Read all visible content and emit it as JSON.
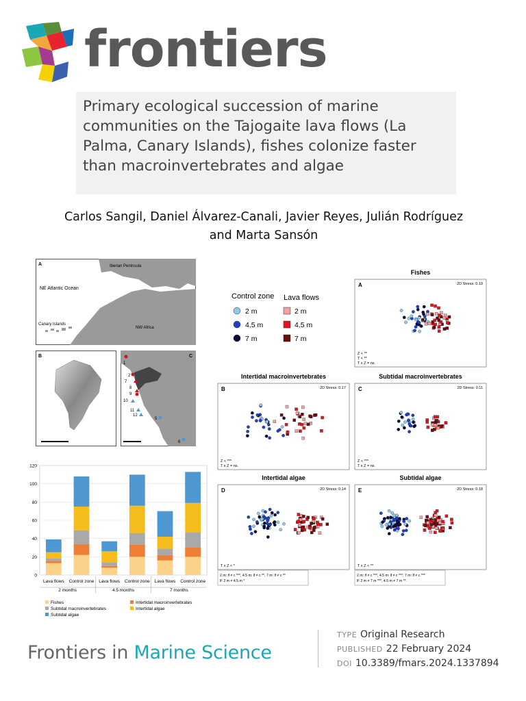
{
  "logo": {
    "text": "frontiers",
    "icon": "frontiers-cube-logo"
  },
  "article": {
    "title_lines": [
      "Primary ecological succession of marine",
      "communities on the Tajogaite lava flows (La",
      "Palma, Canary Islands), fishes colonize faster",
      "than macroinvertebrates and algae"
    ],
    "authors_lines": [
      "Carlos Sangil, Daniel Álvarez-Canali, Javier Reyes, Julián Rodríguez",
      "and Marta Sansón"
    ]
  },
  "maps": {
    "panel_a": {
      "letter": "A",
      "ocean": "NE Atlantic Ocean",
      "peninsula": "Iberian Peninsula",
      "canary": "Canary Islands",
      "africa": "NW Africa"
    },
    "panel_b": {
      "letter": "B"
    },
    "panel_c": {
      "letter": "C",
      "site_labels": [
        "1",
        "2",
        "7",
        "8",
        "9",
        "10",
        "11",
        "12",
        "5",
        "6"
      ]
    }
  },
  "bar_chart": {
    "chart_data": {
      "type": "bar",
      "stacked": true,
      "categories": [
        "Lava flows",
        "Control zone",
        "Lava flows",
        "Control zone",
        "Lava flows",
        "Control zone"
      ],
      "groups": [
        "2 months",
        "4.5 months",
        "7 months"
      ],
      "ylim": [
        0,
        120
      ],
      "yticks": [
        "0",
        "20",
        "40",
        "60",
        "80",
        "100",
        "120"
      ],
      "series": [
        {
          "name": "Fishes",
          "color": "#fbd28a",
          "values": [
            13,
            22,
            8,
            20,
            16,
            20
          ]
        },
        {
          "name": "Intertidal macroinvertebrates",
          "color": "#ee7d35",
          "values": [
            2,
            12,
            2,
            13,
            6,
            10
          ]
        },
        {
          "name": "Subtidal macroinvertebrates",
          "color": "#a9a9a9",
          "values": [
            3,
            15,
            4,
            13,
            7,
            17
          ]
        },
        {
          "name": "Intertidal algae",
          "color": "#f5bd1c",
          "values": [
            7,
            26,
            12,
            30,
            13,
            32
          ]
        },
        {
          "name": "Subtidal algae",
          "color": "#4e97d1",
          "values": [
            14,
            33,
            11,
            34,
            28,
            34
          ]
        }
      ]
    }
  },
  "nmds": {
    "legend": {
      "control_title": "Control zone",
      "lava_title": "Lava flows",
      "items": [
        "2 m",
        "4.5 m",
        "7 m"
      ],
      "control_colors": [
        "#8ecae6",
        "#1f3fc9",
        "#0b0b3b"
      ],
      "lava_colors": [
        "#f2a0a5",
        "#e0161f",
        "#6b0d0d"
      ]
    },
    "panels": [
      {
        "key": "A",
        "title": "Fishes",
        "stress": "2D Stress: 0.19",
        "notes": [
          "Z < **",
          "T < **",
          "T x Z = ns."
        ]
      },
      {
        "key": "B",
        "title": "Intertidal macroinvertebrates",
        "stress": "2D Stress: 0.17",
        "notes": [
          "Z < ***",
          "T x Z = ns."
        ]
      },
      {
        "key": "C",
        "title": "Subtidal macroinvertebrates",
        "stress": "2D Stress: 0.11",
        "notes": [
          "Z < ***",
          "T x Z = ns"
        ]
      },
      {
        "key": "D",
        "title": "Intertidal algae",
        "stress": "2D Stress: 0.14",
        "notes": [
          "T x Z < *"
        ],
        "footnote": [
          "2 m: lf ≠ c ***, 4.5 m: lf ≠ c **, 7 m: lf ≠ c **",
          "lf: 2 m ≠ 4.5 m *"
        ]
      },
      {
        "key": "E",
        "title": "Subtidal algae",
        "stress": "2D Stress: 0.18",
        "notes": [
          "T x Z < **"
        ],
        "footnote": [
          "2 m: lf ≠ c ***, 4.5 m: lf ≠ c ***, 7 m: lf ≠ c ***",
          "lf: 2 m ≠ 7 m ***, 4.5 m ≠ 7 m **."
        ]
      }
    ]
  },
  "footer": {
    "journal_prefix": "Frontiers in ",
    "journal_name": "Marine Science",
    "type_label": "TYPE",
    "type_value": "Original Research",
    "published_label": "PUBLISHED",
    "published_value": "22 February 2024",
    "doi_label": "DOI",
    "doi_value": "10.3389/fmars.2024.1337894",
    "accent_color": "#1aa8b7"
  }
}
